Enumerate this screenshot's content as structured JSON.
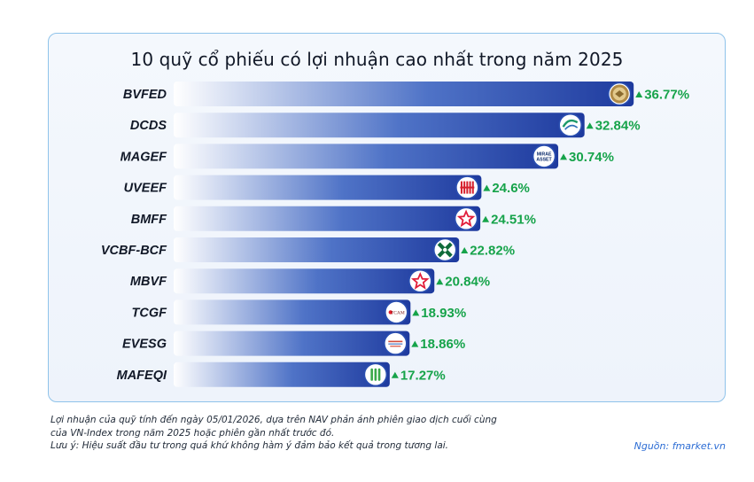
{
  "chart_data": {
    "type": "bar",
    "orientation": "horizontal",
    "title": "10 quỹ cổ phiếu có lợi nhuận cao nhất trong năm 2025",
    "categories": [
      "BVFED",
      "DCDS",
      "MAGEF",
      "UVEEF",
      "BMFF",
      "VCBF-BCF",
      "MBVF",
      "TCGF",
      "EVESG",
      "MAFEQI"
    ],
    "values": [
      36.77,
      32.84,
      30.74,
      24.6,
      24.51,
      22.82,
      20.84,
      18.93,
      18.86,
      17.27
    ],
    "value_labels": [
      "36.77%",
      "32.84%",
      "30.74%",
      "24.6%",
      "24.51%",
      "22.82%",
      "20.84%",
      "18.93%",
      "18.86%",
      "17.27%"
    ],
    "unit": "%",
    "grid": false,
    "legend": "none",
    "bar_color_start": "#ffffff",
    "bar_color_end": "#1e3a9e",
    "value_color": "#16a34a",
    "logo_icons": [
      "bvfed-logo-icon",
      "dcds-logo-icon",
      "magef-logo-icon",
      "uveef-logo-icon",
      "bmff-logo-icon",
      "vcbf-logo-icon",
      "mbvf-logo-icon",
      "tcgf-logo-icon",
      "evesg-logo-icon",
      "mafeqi-logo-icon"
    ]
  },
  "logos": {
    "magef_text": "MIRAE ASSET",
    "tcgf_text": "TCAM"
  },
  "footnote": {
    "line1": "Lợi nhuận của quỹ tính đến ngày 05/01/2026, dựa trên NAV phản ánh phiên giao dịch cuối cùng",
    "line2": "của VN-Index trong năm 2025 hoặc phiên gần nhất trước đó.",
    "line3": "Lưu ý: Hiệu suất đầu tư trong quá khứ không hàm ý đảm bảo kết quả trong tương lai."
  },
  "source": "Nguồn: fmarket.vn"
}
